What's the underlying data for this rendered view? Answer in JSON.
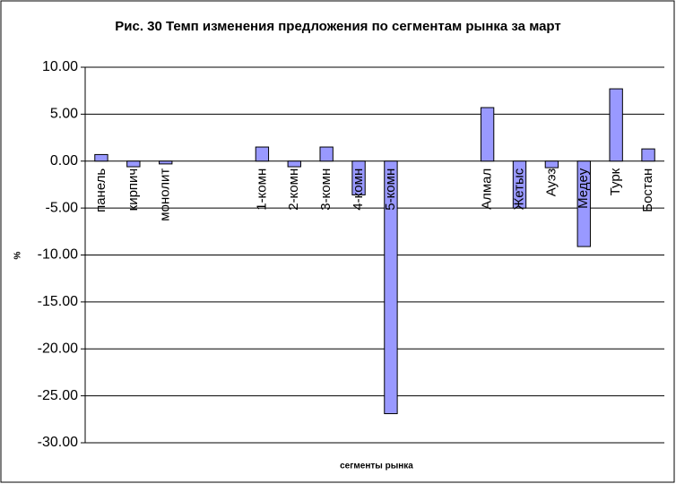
{
  "chart_data": {
    "type": "bar",
    "title": "Рис. 30 Темп изменения предложения по сегментам рынка за март",
    "x_label": "сегменты рынка",
    "y_label": "%",
    "categories": [
      "панель",
      "кирпич",
      "монолит",
      null,
      null,
      "1-комн",
      "2-комн",
      "3-комн",
      "4-комн",
      "5-комн",
      null,
      null,
      "Алмал",
      "Жетыс",
      "Ауэз",
      "Медеу",
      "Турк",
      "Бостан"
    ],
    "values": [
      0.7,
      -0.6,
      -0.3,
      null,
      null,
      1.5,
      -0.6,
      1.5,
      -3.6,
      -26.9,
      null,
      null,
      5.7,
      -5.0,
      -0.7,
      -9.1,
      7.7,
      1.3
    ],
    "color": "#9999ff",
    "ylim": [
      -30,
      10
    ],
    "yticks": [
      {
        "value": -30,
        "label": "-30.00"
      },
      {
        "value": -25,
        "label": "-25.00"
      },
      {
        "value": -20,
        "label": "-20.00"
      },
      {
        "value": -15,
        "label": "-15.00"
      },
      {
        "value": -10,
        "label": "-10.00"
      },
      {
        "value": -5,
        "label": "-5.00"
      },
      {
        "value": 0,
        "label": "0.00"
      },
      {
        "value": 5,
        "label": "5.00"
      },
      {
        "value": 10,
        "label": "10.00"
      }
    ],
    "grid": true
  }
}
